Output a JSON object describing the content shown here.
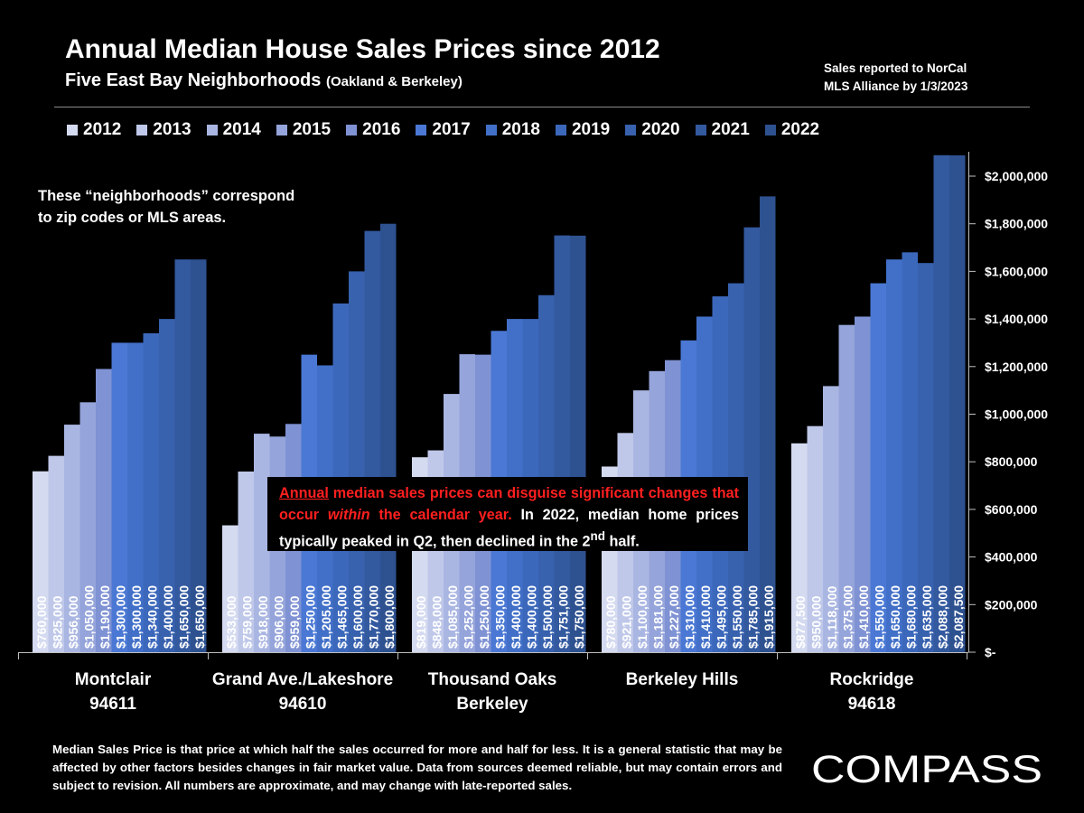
{
  "header": {
    "title": "Annual Median House Sales Prices since 2012",
    "subtitle": "Five East Bay Neighborhoods",
    "subtitle_paren": "(Oakland & Berkeley)",
    "source_line1": "Sales reported to NorCal",
    "source_line2": "MLS Alliance by 1/3/2023"
  },
  "note": {
    "line1": "These “neighborhoods” correspond",
    "line2": "to zip codes or MLS areas."
  },
  "callout": {
    "part1": "Annual",
    "part2": " median sales prices can disguise significant changes that occur ",
    "part3": "within",
    "part4": " the calendar year.",
    "part5": " In 2022, median home prices typically peaked in Q2, then declined in the 2",
    "sup": "nd",
    "part6": " half."
  },
  "footer": "Median Sales Price is that price at which half the sales occurred for more and half for less. It is a general statistic that may be affected by other factors besides changes in fair market value. Data from sources deemed reliable, but may contain errors and subject to revision.  All numbers are approximate, and may change with late-reported sales.",
  "logo": {
    "text": "COMPASS"
  },
  "colors": {
    "background": "#000000",
    "series": [
      "#d4daf0",
      "#bfc8e9",
      "#aab6e2",
      "#95a4da",
      "#7f92d3",
      "#4a78d4",
      "#4270c8",
      "#3c68bc",
      "#3861ae",
      "#33599f",
      "#2e5190"
    ],
    "callout_red": "#ff1f1f"
  },
  "chart_data": {
    "type": "bar",
    "categories": [
      [
        "Montclair",
        "94611"
      ],
      [
        "Grand Ave./Lakeshore",
        "94610"
      ],
      [
        "Thousand Oaks",
        "Berkeley"
      ],
      [
        "Berkeley Hills"
      ],
      [
        "Rockridge",
        "94618"
      ]
    ],
    "ylim": [
      0,
      2100000
    ],
    "yticks": [
      {
        "value": 0,
        "label": "$-"
      },
      {
        "value": 200000,
        "label": "$200,000"
      },
      {
        "value": 400000,
        "label": "$400,000"
      },
      {
        "value": 600000,
        "label": "$600,000"
      },
      {
        "value": 800000,
        "label": "$800,000"
      },
      {
        "value": 1000000,
        "label": "$1,000,000"
      },
      {
        "value": 1200000,
        "label": "$1,200,000"
      },
      {
        "value": 1400000,
        "label": "$1,400,000"
      },
      {
        "value": 1600000,
        "label": "$1,600,000"
      },
      {
        "value": 1800000,
        "label": "$1,800,000"
      },
      {
        "value": 2000000,
        "label": "$2,000,000"
      }
    ],
    "legend_position": "top",
    "grid": false,
    "series": [
      {
        "name": "2012",
        "values": [
          760000,
          533000,
          819000,
          780000,
          877500
        ],
        "labels": [
          "$760,000",
          "$533,000",
          "$819,000",
          "$780,000",
          "$877,500"
        ]
      },
      {
        "name": "2013",
        "values": [
          825000,
          759000,
          848000,
          921000,
          950000
        ],
        "labels": [
          "$825,000",
          "$759,000",
          "$848,000",
          "$921,000",
          "$950,000"
        ]
      },
      {
        "name": "2014",
        "values": [
          956000,
          918000,
          1085000,
          1100000,
          1118000
        ],
        "labels": [
          "$956,000",
          "$918,000",
          "$1,085,000",
          "$1,100,000",
          "$1,118,000"
        ]
      },
      {
        "name": "2015",
        "values": [
          1050000,
          906000,
          1252000,
          1181000,
          1375000
        ],
        "labels": [
          "$1,050,000",
          "$906,000",
          "$1,252,000",
          "$1,181,000",
          "$1,375,000"
        ]
      },
      {
        "name": "2016",
        "values": [
          1190000,
          959000,
          1250000,
          1227000,
          1410000
        ],
        "labels": [
          "$1,190,000",
          "$959,000",
          "$1,250,000",
          "$1,227,000",
          "$1,410,000"
        ]
      },
      {
        "name": "2017",
        "values": [
          1300000,
          1250000,
          1350000,
          1310000,
          1550000
        ],
        "labels": [
          "$1,300,000",
          "$1,250,000",
          "$1,350,000",
          "$1,310,000",
          "$1,550,000"
        ]
      },
      {
        "name": "2018",
        "values": [
          1300000,
          1205000,
          1400000,
          1410000,
          1650000
        ],
        "labels": [
          "$1,300,000",
          "$1,205,000",
          "$1,400,000",
          "$1,410,000",
          "$1,650,000"
        ]
      },
      {
        "name": "2019",
        "values": [
          1340000,
          1465000,
          1400000,
          1495000,
          1680000
        ],
        "labels": [
          "$1,340,000",
          "$1,465,000",
          "$1,400,000",
          "$1,495,000",
          "$1,680,000"
        ]
      },
      {
        "name": "2020",
        "values": [
          1400000,
          1600000,
          1500000,
          1550000,
          1635000
        ],
        "labels": [
          "$1,400,000",
          "$1,600,000",
          "$1,500,000",
          "$1,550,000",
          "$1,635,000"
        ]
      },
      {
        "name": "2021",
        "values": [
          1650000,
          1770000,
          1751000,
          1785000,
          2088000
        ],
        "labels": [
          "$1,650,000",
          "$1,770,000",
          "$1,751,000",
          "$1,785,000",
          "$2,088,000"
        ]
      },
      {
        "name": "2022",
        "values": [
          1650000,
          1800000,
          1750000,
          1915000,
          2087500
        ],
        "labels": [
          "$1,650,000",
          "$1,800,000",
          "$1,750,000",
          "$1,915,000",
          "$2,087,500"
        ]
      }
    ]
  }
}
